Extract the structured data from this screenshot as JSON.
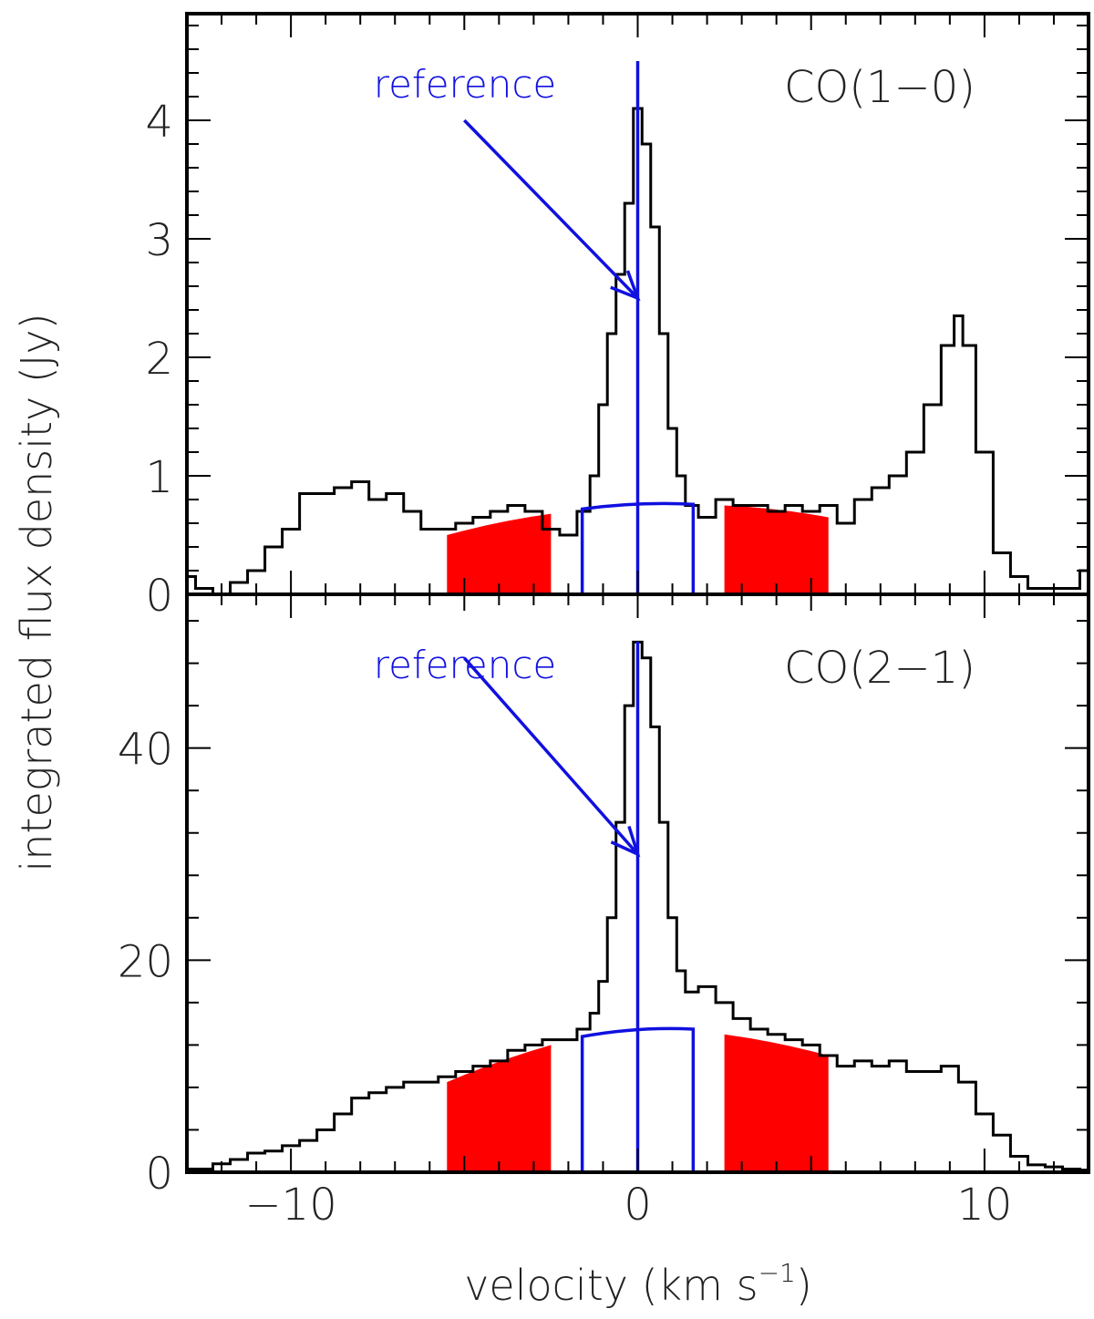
{
  "chart_data": [
    {
      "type": "line",
      "panel_label": "CO(1−0)",
      "reference_label": "reference",
      "reference_arrow": {
        "from": [
          -5.0,
          4.0
        ],
        "to": [
          0.0,
          2.5
        ]
      },
      "xlim": [
        -13,
        13
      ],
      "ylim": [
        0,
        4.9
      ],
      "yticks": [
        0,
        1,
        2,
        3,
        4
      ],
      "ytick_labels": [
        "0",
        "1",
        "2",
        "3",
        "4"
      ],
      "reference_velocity": 0,
      "spectrum": {
        "x": [
          -13,
          -12.5,
          -12,
          -11.5,
          -11,
          -10.5,
          -10,
          -9.5,
          -9,
          -8.5,
          -8,
          -7.5,
          -7,
          -6.5,
          -6,
          -5.5,
          -5,
          -4.5,
          -4,
          -3.5,
          -3,
          -2.5,
          -2,
          -1.5,
          -1.25,
          -1,
          -0.75,
          -0.5,
          -0.25,
          0,
          0.25,
          0.5,
          0.75,
          1,
          1.25,
          1.5,
          2,
          2.5,
          3,
          3.5,
          4,
          4.5,
          5,
          5.5,
          6,
          6.5,
          7,
          7.5,
          8,
          8.5,
          9,
          9.25,
          9.5,
          10,
          10.5,
          11,
          11.5,
          12,
          12.5,
          13
        ],
        "y": [
          0.15,
          0.05,
          0.0,
          0.1,
          0.2,
          0.4,
          0.55,
          0.85,
          0.85,
          0.9,
          0.95,
          0.8,
          0.85,
          0.7,
          0.55,
          0.55,
          0.6,
          0.65,
          0.7,
          0.75,
          0.7,
          0.55,
          0.5,
          0.7,
          1.0,
          1.6,
          2.2,
          2.7,
          3.3,
          4.1,
          3.8,
          3.1,
          2.2,
          1.4,
          1.0,
          0.75,
          0.65,
          0.8,
          0.75,
          0.75,
          0.7,
          0.75,
          0.7,
          0.75,
          0.6,
          0.8,
          0.9,
          1.0,
          1.2,
          1.6,
          2.1,
          2.35,
          2.1,
          1.2,
          0.35,
          0.15,
          0.05,
          0.05,
          0.05,
          0.2
        ]
      },
      "window_box": {
        "x": [
          -1.6,
          1.6
        ],
        "y_left": 0.72,
        "y_center": 0.76,
        "y_right": 0.76
      },
      "shaded_regions": [
        {
          "x": [
            -5.5,
            -2.5
          ],
          "y_start": 0.5,
          "y_end": 0.68
        },
        {
          "x": [
            2.5,
            5.5
          ],
          "y_start": 0.75,
          "y_end": 0.65
        }
      ]
    },
    {
      "type": "line",
      "panel_label": "CO(2−1)",
      "reference_label": "reference",
      "reference_arrow": {
        "from": [
          -5.0,
          48.5
        ],
        "to": [
          0.0,
          30.0
        ]
      },
      "xlim": [
        -13,
        13
      ],
      "ylim": [
        0,
        54.5
      ],
      "yticks": [
        0,
        20,
        40
      ],
      "ytick_labels": [
        "0",
        "20",
        "40"
      ],
      "xticks": [
        -10,
        0,
        10
      ],
      "xtick_labels": [
        "−10",
        "0",
        "10"
      ],
      "reference_velocity": 0,
      "spectrum": {
        "x": [
          -13,
          -12.5,
          -12,
          -11.5,
          -11,
          -10.5,
          -10,
          -9.5,
          -9,
          -8.5,
          -8,
          -7.5,
          -7,
          -6.5,
          -6,
          -5.5,
          -5,
          -4.5,
          -4,
          -3.5,
          -3,
          -2.5,
          -2,
          -1.5,
          -1.25,
          -1,
          -0.75,
          -0.5,
          -0.25,
          0,
          0.25,
          0.5,
          0.75,
          1,
          1.25,
          1.5,
          2,
          2.5,
          3,
          3.5,
          4,
          4.5,
          5,
          5.5,
          6,
          6.5,
          7,
          7.5,
          8,
          8.5,
          9,
          9.5,
          10,
          10.5,
          11,
          11.5,
          12,
          12.5,
          13
        ],
        "y": [
          0.3,
          0.3,
          0.8,
          1.2,
          1.8,
          2.0,
          2.5,
          3.0,
          4.0,
          5.5,
          7.0,
          7.5,
          8.0,
          8.5,
          8.5,
          9.0,
          9.5,
          10.0,
          10.5,
          11.5,
          12.0,
          12.5,
          12.5,
          13.5,
          15.0,
          18.0,
          24.0,
          33.0,
          44.0,
          50.0,
          48.5,
          42.0,
          33.0,
          24.0,
          19.0,
          17.0,
          17.5,
          16.0,
          14.5,
          13.5,
          13.0,
          12.5,
          12.0,
          11.0,
          10.0,
          10.5,
          10.0,
          10.5,
          9.5,
          9.5,
          10.0,
          8.5,
          5.5,
          3.5,
          1.5,
          0.7,
          0.5,
          0.3,
          0.2
        ]
      },
      "window_box": {
        "x": [
          -1.6,
          1.6
        ],
        "y_left": 12.8,
        "y_center": 13.5,
        "y_right": 13.5
      },
      "shaded_regions": [
        {
          "x": [
            -5.5,
            -2.5
          ],
          "y_start": 8.5,
          "y_end": 12.0
        },
        {
          "x": [
            2.5,
            5.5
          ],
          "y_start": 13.0,
          "y_end": 11.0
        }
      ]
    }
  ],
  "xlabel_text": "velocity (km s",
  "xlabel_superscript": "−1",
  "xlabel_close": ")",
  "ylabel": "integrated flux density (Jy)",
  "colors": {
    "spectrum": "#000000",
    "reference": "#1010e0",
    "shaded": "#ff0000",
    "axes": "#000000"
  }
}
